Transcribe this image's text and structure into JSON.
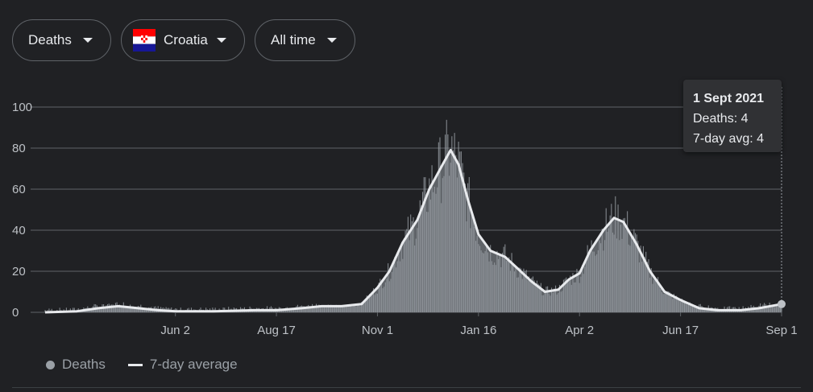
{
  "filters": {
    "metric": "Deaths",
    "country": "Croatia",
    "range": "All time"
  },
  "colors": {
    "background": "#202124",
    "grid": "#5f6368",
    "bars": "#9aa0a6",
    "area": "#5f6368",
    "average_line": "#e8eaed"
  },
  "tooltip": {
    "date": "1 Sept 2021",
    "deaths_text": "Deaths: 4",
    "avg_text": "7-day avg: 4"
  },
  "legend": {
    "deaths": "Deaths",
    "average": "7-day average"
  },
  "chart_data": {
    "type": "bar",
    "title": "",
    "xlabel": "",
    "ylabel": "",
    "x_range": [
      "2020-02-25",
      "2021-09-01"
    ],
    "ylim": [
      0,
      100
    ],
    "y_ticks": [
      0,
      20,
      40,
      60,
      80,
      100
    ],
    "x_ticks": [
      {
        "label": "Jun 2",
        "date": "2020-06-02"
      },
      {
        "label": "Aug 17",
        "date": "2020-08-17"
      },
      {
        "label": "Nov 1",
        "date": "2020-11-01"
      },
      {
        "label": "Jan 16",
        "date": "2021-01-16"
      },
      {
        "label": "Apr 2",
        "date": "2021-04-02"
      },
      {
        "label": "Jun 17",
        "date": "2021-06-17"
      },
      {
        "label": "Sep 1",
        "date": "2021-09-01"
      }
    ],
    "grid": true,
    "legend_position": "bottom-left",
    "series": [
      {
        "name": "7-day average",
        "type": "line",
        "points": [
          [
            "2020-02-25",
            0
          ],
          [
            "2020-03-20",
            0.5
          ],
          [
            "2020-04-05",
            2
          ],
          [
            "2020-04-20",
            3
          ],
          [
            "2020-05-05",
            2
          ],
          [
            "2020-05-20",
            1
          ],
          [
            "2020-06-02",
            0.5
          ],
          [
            "2020-07-01",
            0.5
          ],
          [
            "2020-08-01",
            1
          ],
          [
            "2020-08-17",
            1
          ],
          [
            "2020-09-05",
            2
          ],
          [
            "2020-09-20",
            3
          ],
          [
            "2020-10-05",
            3
          ],
          [
            "2020-10-20",
            4
          ],
          [
            "2020-11-01",
            12
          ],
          [
            "2020-11-10",
            20
          ],
          [
            "2020-11-20",
            34
          ],
          [
            "2020-12-01",
            45
          ],
          [
            "2020-12-10",
            60
          ],
          [
            "2020-12-20",
            72
          ],
          [
            "2020-12-26",
            79
          ],
          [
            "2021-01-01",
            72
          ],
          [
            "2021-01-08",
            55
          ],
          [
            "2021-01-16",
            38
          ],
          [
            "2021-01-25",
            30
          ],
          [
            "2021-02-05",
            27
          ],
          [
            "2021-02-15",
            21
          ],
          [
            "2021-02-25",
            15
          ],
          [
            "2021-03-07",
            10
          ],
          [
            "2021-03-17",
            11
          ],
          [
            "2021-03-25",
            16
          ],
          [
            "2021-04-02",
            19
          ],
          [
            "2021-04-10",
            30
          ],
          [
            "2021-04-20",
            40
          ],
          [
            "2021-04-28",
            46
          ],
          [
            "2021-05-05",
            44
          ],
          [
            "2021-05-15",
            33
          ],
          [
            "2021-05-25",
            20
          ],
          [
            "2021-06-05",
            10
          ],
          [
            "2021-06-17",
            6
          ],
          [
            "2021-07-01",
            2
          ],
          [
            "2021-07-15",
            1
          ],
          [
            "2021-08-01",
            1
          ],
          [
            "2021-08-15",
            2
          ],
          [
            "2021-09-01",
            4
          ]
        ]
      },
      {
        "name": "Deaths",
        "type": "bar",
        "highlighted": {
          "date": "2021-09-01",
          "value": 4
        }
      }
    ]
  }
}
